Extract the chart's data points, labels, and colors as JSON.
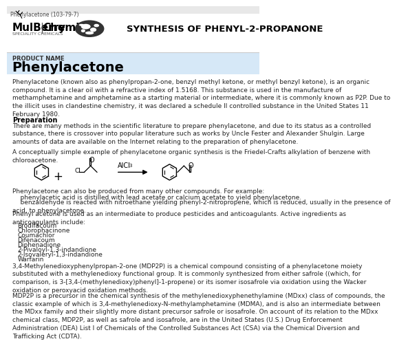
{
  "title_bar_text": "Phenylacetone (103-79-7)",
  "company_sub": "SPECIALITY CHEMICALS",
  "synthesis_title": "SYNTHESIS OF PHENYL-2-PROPANONE",
  "product_label": "PRODUCT NAME",
  "product_name": "Phenylacetone",
  "para1": "Phenylacetone (known also as phenylpropan-2-one, benzyl methyl ketone, or methyl benzyl ketone), is an organic\ncompound. It is a clear oil with a refractive index of 1.5168. This substance is used in the manufacture of\nmethamphetamine and amphetamine as a starting material or intermediate, where it is commonly known as P2P. Due to\nthe illicit uses in clandestine chemistry, it was declared a schedule II controlled substance in the United States 11\nFebruary 1980.",
  "prep_title": "Preparation",
  "prep_body": "There are many methods in the scientific literature to prepare phenylacetone, and due to its status as a controlled\nsubstance, there is crossover into popular literature such as works by Uncle Fester and Alexander Shulgin. Large\namounts of data are available on the Internet relating to the preparation of phenylacetone.",
  "prep_body2": "A conceptually simple example of phenylacetone organic synthesis is the Friedel-Crafts alkylation of benzene with\nchloroacetone.",
  "also_produced": "Phenylacetone can also be produced from many other compounds. For example:",
  "bullet1": "    phenylacetic acid is distilled with lead acetate or calcium acetate to yield phenylacetone.",
  "bullet2": "    benzaldehyde is reacted with nitroethane yielding phenyl-2-nitropropene, which is reduced, usually in the presence of\nacid, to phenylacetone.",
  "intermediate_text": "Phenyl acetone is used as an intermediate to produce pesticides and anticoagulants. Active ingredients as\nanticoagulants include:",
  "anticoag_list": [
    "Brodifacoum",
    "Chlorophacinone",
    "Coumachlor",
    "Difenacoum",
    "Diphenadione",
    "2-Pivaloyl-1,3-indandione",
    "2-Isovaleryl-1,3-indandione",
    "Warfarin"
  ],
  "mdp2p_para": "3,4-Methylenedioxyphenylpropan-2-one (MDP2P) is a chemical compound consisting of a phenylacetone moiety\nsubstituted with a methylenedioxy functional group. It is commonly synthesized from either safrole ((which, for\ncomparison, is 3-[3,4-(methylenedioxy)phenyl]-1-propene) or its isomer isosafrole via oxidation using the Wacker\noxidation or peroxyacid oxidation methods.",
  "mdp2p_para2": "MDP2P is a precursor in the chemical synthesis of the methylenedioxyphenethylamine (MDxx) class of compounds, the\nclassic example of which is 3,4-methylenedioxy-N-methylamphetamine (MDMA), and is also an intermediate between\nthe MDxx family and their slightly more distant precursor safrole or isosafrole. On account of its relation to the MDxx\nchemical class, MDP2P, as well as safrole and isosafrole, are in the United States (U.S.) Drug Enforcement\nAdministration (DEA) List I of Chemicals of the Controlled Substances Act (CSA) via the Chemical Diversion and\nTrafficking Act (CDTA).",
  "bg_color": "#ffffff",
  "blue_bar_bg": "#d6e8f7",
  "top_bar_bg": "#e8e8e8",
  "text_color": "#222222",
  "font_size_body": 6.5,
  "font_size_product": 14.0,
  "font_size_synth": 9.5
}
